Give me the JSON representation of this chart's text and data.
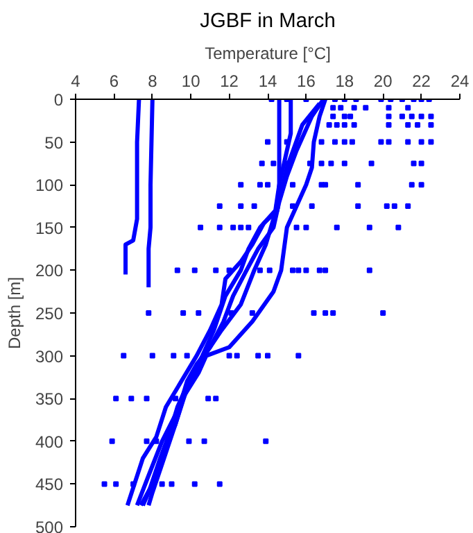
{
  "chart_data": {
    "type": "line",
    "title": "JGBF in March",
    "xlabel": "Temperature [°C]",
    "ylabel": "Depth [m]",
    "xlim": [
      4,
      24
    ],
    "xticks": [
      4,
      6,
      8,
      10,
      12,
      14,
      16,
      18,
      20,
      22,
      24
    ],
    "ylim": [
      500,
      0
    ],
    "yticks": [
      0,
      50,
      100,
      150,
      200,
      250,
      300,
      350,
      400,
      450,
      500
    ],
    "grid": false,
    "series": [
      {
        "color": "#0000ff",
        "marker": "none",
        "x": [
          17.0,
          16.7,
          16.4,
          16.3,
          16.0,
          15.5,
          15.0,
          14.7,
          14.3,
          13.2,
          12.0,
          10.8,
          10.4,
          9.7,
          9.2,
          8.8,
          8.0,
          7.4
        ],
        "values": [
          0,
          20,
          50,
          80,
          100,
          125,
          150,
          200,
          225,
          260,
          290,
          300,
          320,
          345,
          380,
          400,
          450,
          475
        ]
      },
      {
        "color": "#0000ff",
        "marker": "none",
        "x": [
          16.9,
          16.3,
          15.5,
          15.0,
          14.6,
          14.3,
          13.5,
          12.9,
          12.2,
          11.7,
          11.0,
          10.3,
          9.8,
          9.4,
          8.5,
          7.8,
          7.2
        ],
        "values": [
          0,
          20,
          60,
          90,
          120,
          150,
          175,
          200,
          230,
          260,
          290,
          310,
          330,
          360,
          400,
          440,
          475
        ]
      },
      {
        "color": "#0000ff",
        "marker": "none",
        "x": [
          15.2,
          15.2,
          14.9,
          14.6,
          14.5,
          13.8,
          13.2,
          12.6,
          11.8,
          11.6,
          11.0,
          10.3,
          9.5,
          8.7,
          8.2,
          7.5,
          6.7
        ],
        "values": [
          0,
          40,
          70,
          100,
          130,
          145,
          170,
          190,
          210,
          240,
          270,
          300,
          330,
          360,
          395,
          420,
          475
        ]
      },
      {
        "color": "#0000ff",
        "marker": "none",
        "x": [
          14.6,
          14.6,
          14.6,
          14.4,
          13.6,
          13.0,
          12.6,
          11.8,
          11.2,
          10.6,
          9.9,
          9.3,
          8.9,
          8.4,
          7.8,
          7.5
        ],
        "values": [
          0,
          50,
          100,
          130,
          150,
          175,
          200,
          230,
          270,
          300,
          330,
          360,
          390,
          420,
          460,
          475
        ]
      },
      {
        "color": "#0000ff",
        "marker": "none",
        "x": [
          16.7,
          15.8,
          15.0,
          14.7,
          14.3,
          13.9,
          13.3,
          12.6,
          11.6,
          10.7,
          10.0,
          9.6,
          9.2,
          8.6,
          8.0,
          7.8
        ],
        "values": [
          5,
          30,
          80,
          110,
          140,
          170,
          200,
          240,
          270,
          300,
          330,
          350,
          380,
          420,
          460,
          475
        ]
      },
      {
        "color": "#0000ff",
        "marker": "none",
        "x": [
          7.3,
          7.2,
          7.2,
          7.0,
          6.6,
          6.6
        ],
        "values": [
          0,
          50,
          140,
          165,
          170,
          205
        ]
      },
      {
        "color": "#0000ff",
        "marker": "none",
        "x": [
          8.0,
          7.9,
          7.9,
          7.8,
          7.8
        ],
        "values": [
          0,
          100,
          150,
          175,
          220
        ]
      },
      {
        "type": "scatter",
        "color": "#0000ff",
        "marker": "square",
        "x": [
          14.2,
          15.0,
          16.0,
          17.5,
          18.0,
          18.6,
          19.9,
          20.4,
          21.0,
          21.6,
          22.0,
          22.4,
          17.4,
          17.8,
          18.5,
          19.1,
          20.3,
          21.3,
          17.4,
          18.0,
          18.3,
          20.3,
          21.0,
          21.5,
          22.0,
          22.5,
          17.2,
          17.6,
          18.0,
          18.5,
          20.3,
          21.3,
          21.8,
          22.5,
          14.0,
          15.0,
          16.8,
          17.5,
          18.0,
          18.4,
          19.9,
          20.3,
          21.3,
          22.0,
          22.5,
          13.7,
          14.3,
          15.0,
          16.2,
          16.8,
          17.3,
          18.0,
          19.4,
          21.6,
          22.0,
          12.6,
          13.6,
          14.0,
          15.3,
          16.8,
          17.0,
          18.7,
          21.5,
          22.0,
          11.5,
          12.6,
          13.3,
          14.5,
          15.3,
          16.3,
          18.7,
          20.2,
          20.6,
          21.3,
          10.5,
          11.5,
          12.2,
          12.6,
          13.0,
          15.5,
          16.0,
          17.6,
          19.3,
          20.8,
          9.3,
          10.2,
          11.3,
          12.0,
          13.6,
          14.1,
          15.3,
          15.6,
          16.0,
          16.7,
          17.0,
          19.3,
          7.8,
          9.6,
          10.4,
          12.1,
          13.2,
          16.4,
          17.0,
          17.4,
          20.0,
          6.5,
          8.0,
          9.1,
          9.8,
          12.0,
          12.4,
          13.5,
          14.0,
          15.6,
          6.1,
          6.9,
          7.7,
          9.2,
          10.9,
          11.3,
          5.9,
          7.7,
          8.2,
          9.9,
          10.7,
          13.9,
          5.5,
          6.1,
          7.0,
          8.5,
          9.0,
          10.2,
          11.5
        ],
        "values": [
          0,
          0,
          0,
          0,
          0,
          0,
          0,
          0,
          0,
          0,
          0,
          0,
          10,
          10,
          10,
          10,
          10,
          10,
          20,
          20,
          20,
          20,
          20,
          20,
          20,
          20,
          30,
          30,
          30,
          30,
          30,
          30,
          30,
          30,
          50,
          50,
          50,
          50,
          50,
          50,
          50,
          50,
          50,
          50,
          50,
          75,
          75,
          75,
          75,
          75,
          75,
          75,
          75,
          75,
          75,
          100,
          100,
          100,
          100,
          100,
          100,
          100,
          100,
          100,
          125,
          125,
          125,
          125,
          125,
          125,
          125,
          125,
          125,
          125,
          150,
          150,
          150,
          150,
          150,
          150,
          150,
          150,
          150,
          150,
          200,
          200,
          200,
          200,
          200,
          200,
          200,
          200,
          200,
          200,
          200,
          200,
          250,
          250,
          250,
          250,
          250,
          250,
          250,
          250,
          250,
          300,
          300,
          300,
          300,
          300,
          300,
          300,
          300,
          300,
          350,
          350,
          350,
          350,
          350,
          350,
          400,
          400,
          400,
          400,
          400,
          400,
          450,
          450,
          450,
          450,
          450,
          450,
          450
        ]
      }
    ]
  }
}
